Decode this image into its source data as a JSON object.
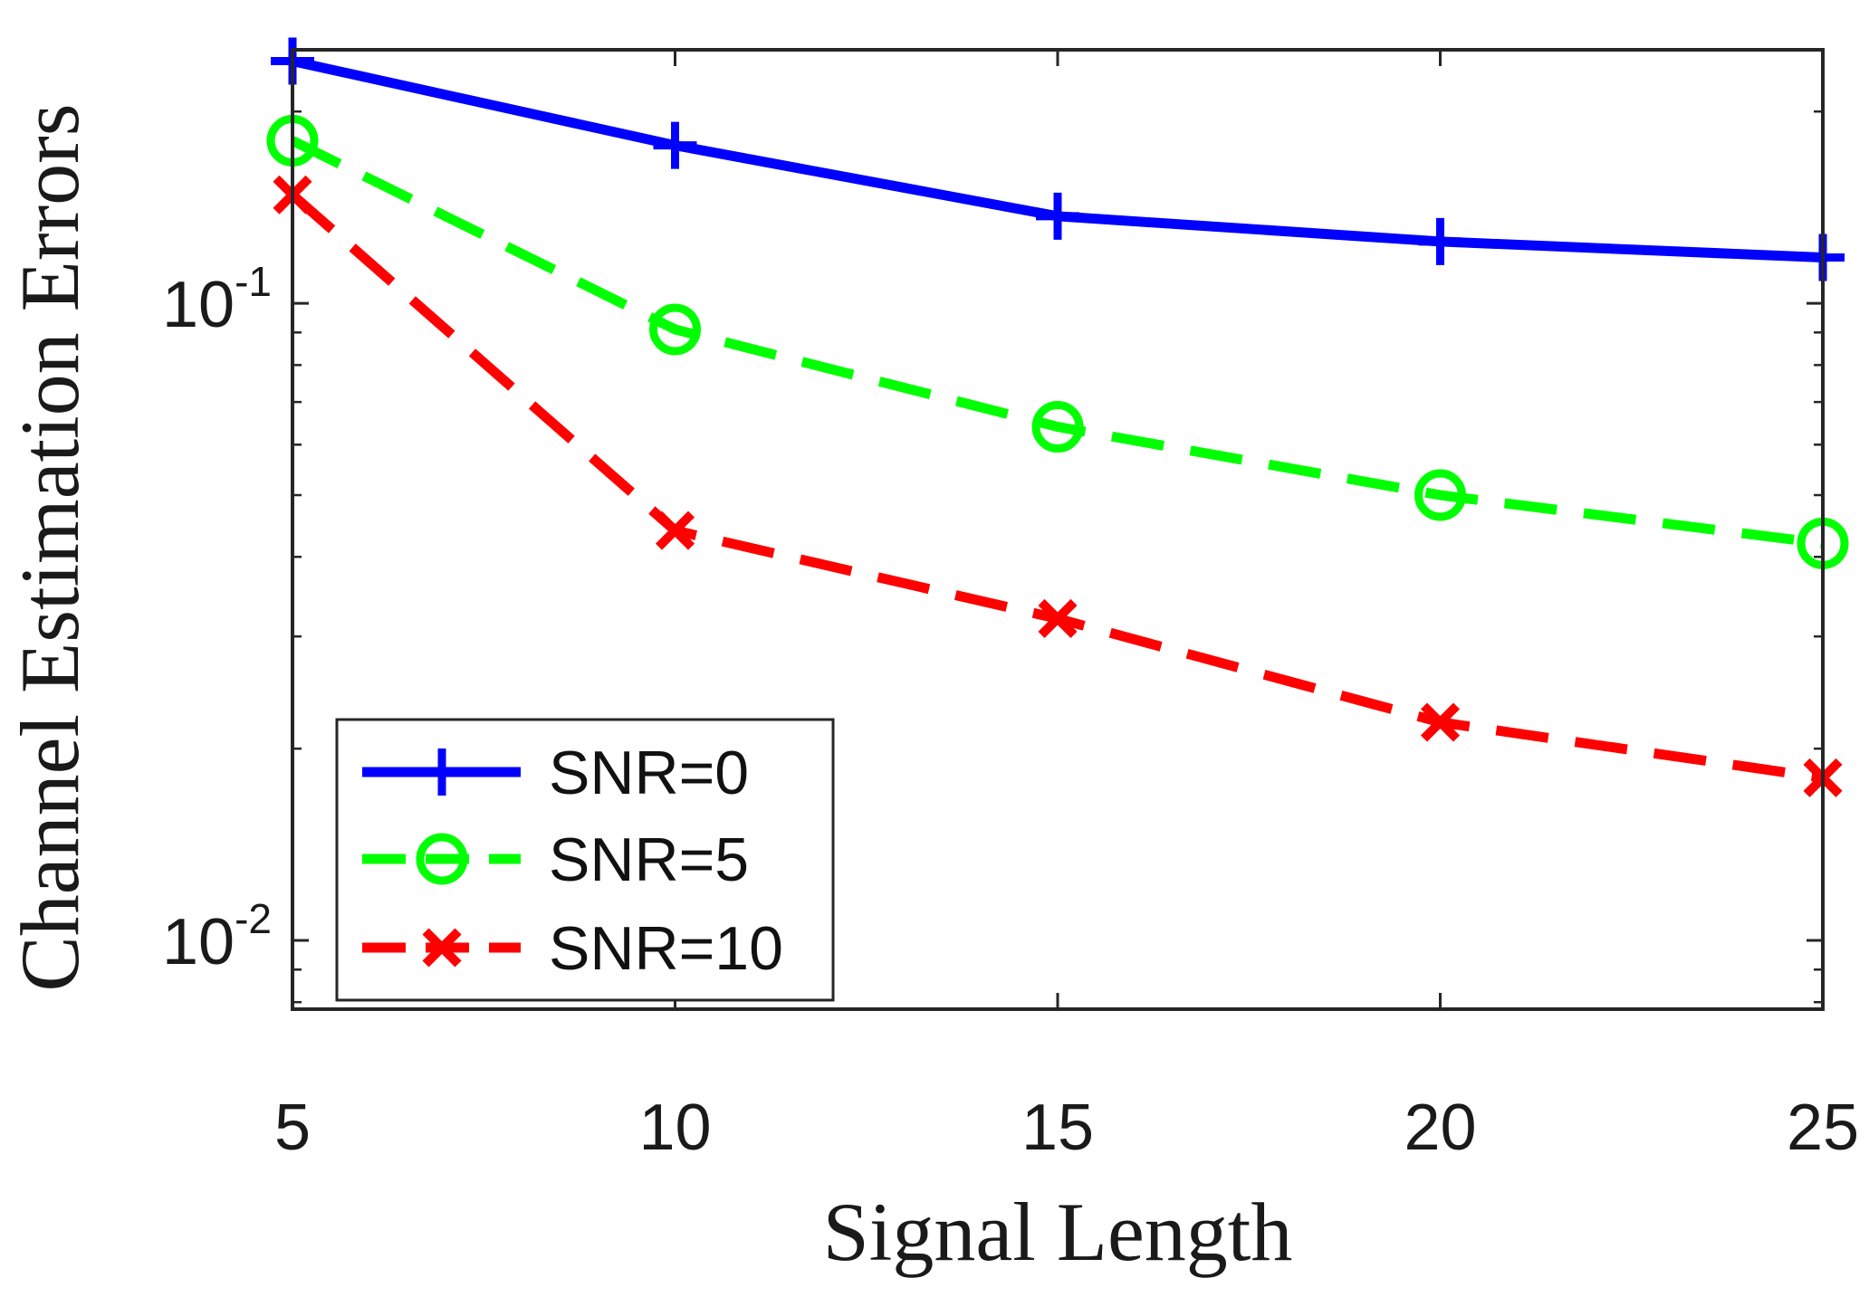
{
  "chart_data": {
    "type": "line",
    "title": "",
    "xlabel": "Signal Length",
    "ylabel": "Channel Estimation Errors",
    "xscale": "linear",
    "yscale": "log",
    "xlim": [
      5,
      25
    ],
    "ylim": [
      0.0078,
      0.25
    ],
    "x": [
      5,
      10,
      15,
      20,
      25
    ],
    "x_ticks": [
      "5",
      "10",
      "15",
      "20",
      "25"
    ],
    "y_ticks": [
      {
        "value": 0.1,
        "base": "10",
        "exp": "-1"
      },
      {
        "value": 0.01,
        "base": "10",
        "exp": "-2"
      }
    ],
    "grid": false,
    "legend_position": "bottom-left",
    "series": [
      {
        "name": "SNR=0",
        "values": [
          0.24,
          0.177,
          0.137,
          0.125,
          0.118
        ],
        "color": "#0000ff",
        "line_style": "solid",
        "marker": "plus"
      },
      {
        "name": "SNR=5",
        "values": [
          0.18,
          0.091,
          0.064,
          0.05,
          0.042
        ],
        "color": "#00ff00",
        "line_style": "dashed",
        "marker": "circle"
      },
      {
        "name": "SNR=10",
        "values": [
          0.148,
          0.044,
          0.032,
          0.022,
          0.018
        ],
        "color": "#ff0000",
        "line_style": "dashed",
        "marker": "x"
      }
    ]
  }
}
